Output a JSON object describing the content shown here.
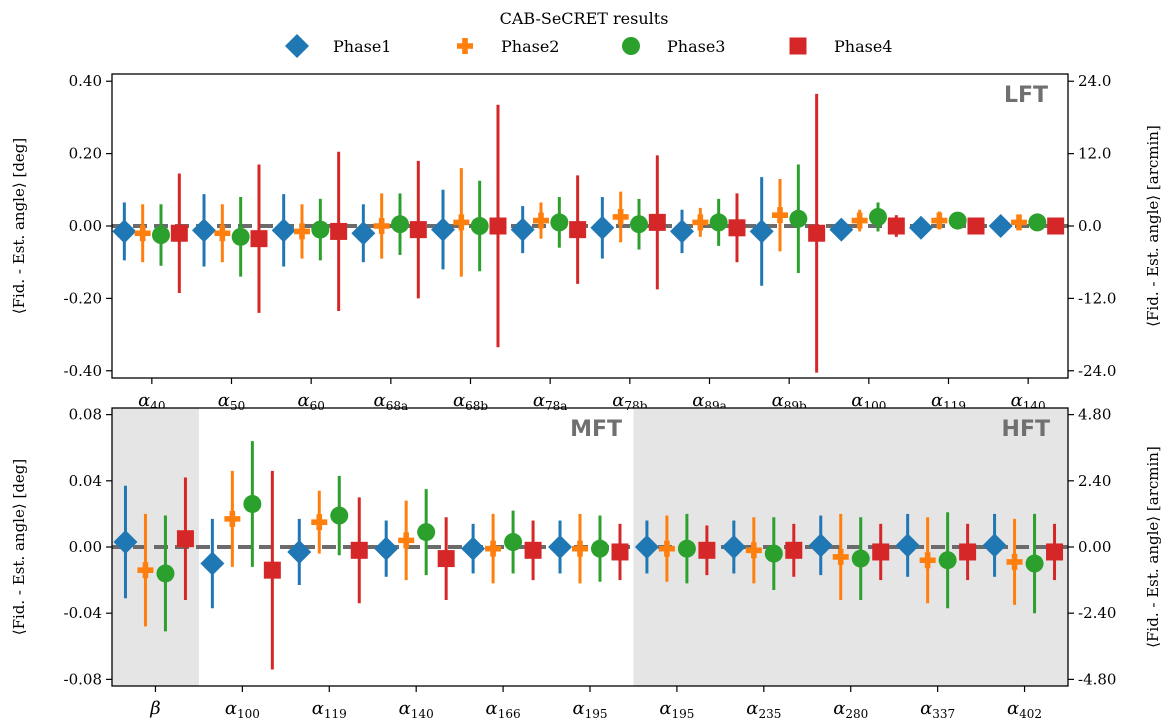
{
  "chart_data": {
    "title": "CAB-SeCRET results",
    "legend": [
      {
        "name": "Phase1",
        "color": "#1f77b4",
        "marker": "diamond"
      },
      {
        "name": "Phase2",
        "color": "#ff7f0e",
        "marker": "plus"
      },
      {
        "name": "Phase3",
        "color": "#2ca02c",
        "marker": "circle"
      },
      {
        "name": "Phase4",
        "color": "#d62728",
        "marker": "square"
      }
    ],
    "legend_placement": "top-center",
    "panels": [
      {
        "type": "scatter",
        "error_bars": true,
        "stamps": [
          "LFT"
        ],
        "shaded_ranges": [],
        "ylabel": "⟨Fid. - Est. angle⟩ [deg]",
        "y2label": "⟨Fid. - Est. angle⟩ [arcmin]",
        "ylim": [
          -0.42,
          0.42
        ],
        "yticks": [
          0.4,
          0.2,
          0.0,
          -0.2,
          -0.4
        ],
        "ytick_labels": [
          "0.40",
          "0.20",
          "0.00",
          "-0.20",
          "-0.40"
        ],
        "y2ticks": [
          24.0,
          12.0,
          0.0,
          -12.0,
          -24.0
        ],
        "y2tick_labels": [
          "24.0",
          "12.0",
          "0.0",
          "-12.0",
          "-24.0"
        ],
        "reference_line": 0,
        "categories": [
          {
            "base": "α",
            "sub": "40"
          },
          {
            "base": "α",
            "sub": "50"
          },
          {
            "base": "α",
            "sub": "60"
          },
          {
            "base": "α",
            "sub": "68a"
          },
          {
            "base": "α",
            "sub": "68b"
          },
          {
            "base": "α",
            "sub": "78a"
          },
          {
            "base": "α",
            "sub": "78b"
          },
          {
            "base": "α",
            "sub": "89a"
          },
          {
            "base": "α",
            "sub": "89b"
          },
          {
            "base": "α",
            "sub": "100"
          },
          {
            "base": "α",
            "sub": "119"
          },
          {
            "base": "α",
            "sub": "140"
          }
        ],
        "series": [
          {
            "name": "Phase1",
            "values": [
              -0.015,
              -0.012,
              -0.012,
              -0.02,
              -0.01,
              -0.01,
              -0.005,
              -0.015,
              -0.015,
              -0.01,
              -0.005,
              0.0
            ],
            "errors": [
              0.08,
              0.1,
              0.1,
              0.08,
              0.11,
              0.065,
              0.085,
              0.06,
              0.15,
              0.02,
              0.015,
              0.012
            ]
          },
          {
            "name": "Phase2",
            "values": [
              -0.02,
              -0.02,
              -0.015,
              0.0,
              0.01,
              0.015,
              0.025,
              0.01,
              0.03,
              0.015,
              0.015,
              0.01
            ],
            "errors": [
              0.08,
              0.08,
              0.075,
              0.09,
              0.15,
              0.05,
              0.07,
              0.04,
              0.1,
              0.03,
              0.025,
              0.02
            ]
          },
          {
            "name": "Phase3",
            "values": [
              -0.025,
              -0.03,
              -0.01,
              0.005,
              0.0,
              0.01,
              0.005,
              0.01,
              0.02,
              0.025,
              0.015,
              0.01
            ],
            "errors": [
              0.085,
              0.11,
              0.085,
              0.085,
              0.125,
              0.07,
              0.07,
              0.065,
              0.15,
              0.04,
              0.02,
              0.015
            ]
          },
          {
            "name": "Phase4",
            "values": [
              -0.02,
              -0.035,
              -0.015,
              -0.01,
              0.0,
              -0.01,
              0.01,
              -0.005,
              -0.02,
              0.0,
              0.0,
              0.0
            ],
            "errors": [
              0.165,
              0.205,
              0.22,
              0.19,
              0.335,
              0.15,
              0.185,
              0.095,
              0.385,
              0.03,
              0.02,
              0.012
            ]
          }
        ]
      },
      {
        "type": "scatter",
        "error_bars": true,
        "stamps": [
          "MFT",
          "HFT"
        ],
        "shaded_ranges": [
          [
            -0.5,
            0.5
          ],
          [
            5.5,
            10.5
          ]
        ],
        "ylabel": "⟨Fid. - Est. angle⟩ [deg]",
        "y2label": "⟨Fid. - Est. angle⟩ [arcmin]",
        "ylim": [
          -0.084,
          0.084
        ],
        "yticks": [
          0.08,
          0.04,
          0.0,
          -0.04,
          -0.08
        ],
        "ytick_labels": [
          "0.08",
          "0.04",
          "0.00",
          "-0.04",
          "-0.08"
        ],
        "y2ticks": [
          4.8,
          2.4,
          0.0,
          -2.4,
          -4.8
        ],
        "y2tick_labels": [
          "4.80",
          "2.40",
          "0.00",
          "-2.40",
          "-4.80"
        ],
        "reference_line": 0,
        "categories": [
          {
            "base": "β",
            "sub": ""
          },
          {
            "base": "α",
            "sub": "100"
          },
          {
            "base": "α",
            "sub": "119"
          },
          {
            "base": "α",
            "sub": "140"
          },
          {
            "base": "α",
            "sub": "166"
          },
          {
            "base": "α",
            "sub": "195"
          },
          {
            "base": "α",
            "sub": "195"
          },
          {
            "base": "α",
            "sub": "235"
          },
          {
            "base": "α",
            "sub": "280"
          },
          {
            "base": "α",
            "sub": "337"
          },
          {
            "base": "α",
            "sub": "402"
          }
        ],
        "series": [
          {
            "name": "Phase1",
            "values": [
              0.003,
              -0.01,
              -0.003,
              -0.001,
              -0.001,
              0.0,
              0.0,
              0.0,
              0.001,
              0.001,
              0.001
            ],
            "errors": [
              0.034,
              0.027,
              0.02,
              0.017,
              0.015,
              0.016,
              0.016,
              0.016,
              0.018,
              0.019,
              0.019
            ]
          },
          {
            "name": "Phase2",
            "values": [
              -0.014,
              0.017,
              0.015,
              0.004,
              -0.001,
              -0.001,
              -0.001,
              -0.002,
              -0.006,
              -0.008,
              -0.009
            ],
            "errors": [
              0.034,
              0.029,
              0.019,
              0.024,
              0.021,
              0.021,
              0.02,
              0.02,
              0.026,
              0.026,
              0.026
            ]
          },
          {
            "name": "Phase3",
            "values": [
              -0.016,
              0.026,
              0.019,
              0.009,
              0.003,
              -0.001,
              -0.001,
              -0.004,
              -0.007,
              -0.008,
              -0.01
            ],
            "errors": [
              0.035,
              0.038,
              0.024,
              0.026,
              0.019,
              0.02,
              0.021,
              0.022,
              0.025,
              0.029,
              0.03
            ]
          },
          {
            "name": "Phase4",
            "values": [
              0.005,
              -0.014,
              -0.002,
              -0.007,
              -0.002,
              -0.003,
              -0.002,
              -0.002,
              -0.003,
              -0.003,
              -0.003
            ],
            "errors": [
              0.037,
              0.06,
              0.032,
              0.025,
              0.018,
              0.017,
              0.015,
              0.016,
              0.017,
              0.017,
              0.017
            ]
          }
        ]
      }
    ]
  }
}
